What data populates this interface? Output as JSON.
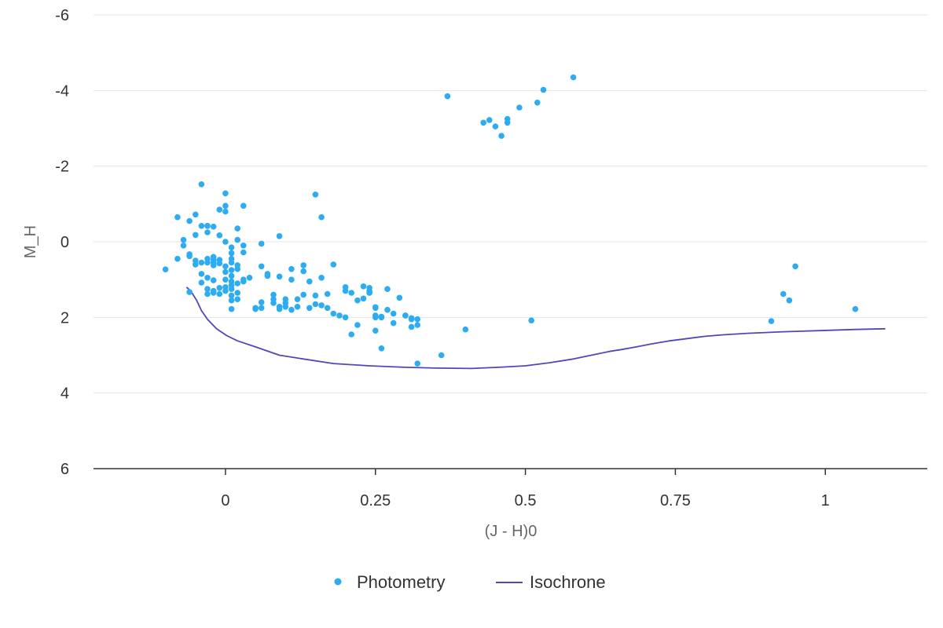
{
  "chart_data": {
    "type": "scatter",
    "title": "",
    "xlabel": "(J - H)0",
    "ylabel": "M_H",
    "xlim": [
      -0.22,
      1.17
    ],
    "ylim": [
      6,
      -6
    ],
    "y_reversed": true,
    "grid": "horizontal",
    "legend_position": "bottom-center",
    "x_ticks": [
      {
        "value": 0,
        "label": "0"
      },
      {
        "value": 0.25,
        "label": "0.25"
      },
      {
        "value": 0.5,
        "label": "0.5"
      },
      {
        "value": 0.75,
        "label": "0.75"
      },
      {
        "value": 1,
        "label": "1"
      }
    ],
    "y_ticks": [
      {
        "value": -6,
        "label": "-6"
      },
      {
        "value": -4,
        "label": "-4"
      },
      {
        "value": -2,
        "label": "-2"
      },
      {
        "value": 0,
        "label": "0"
      },
      {
        "value": 2,
        "label": "2"
      },
      {
        "value": 4,
        "label": "4"
      },
      {
        "value": 6,
        "label": "6"
      }
    ],
    "series": [
      {
        "name": "Photometry",
        "kind": "scatter",
        "color": "#2eacf2",
        "points": [
          [
            -0.1,
            0.73
          ],
          [
            -0.08,
            -0.65
          ],
          [
            -0.08,
            0.45
          ],
          [
            -0.07,
            -0.05
          ],
          [
            -0.07,
            0.1
          ],
          [
            -0.06,
            0.33
          ],
          [
            -0.06,
            0.38
          ],
          [
            -0.06,
            1.33
          ],
          [
            -0.06,
            -0.55
          ],
          [
            -0.05,
            -0.18
          ],
          [
            -0.05,
            0.5
          ],
          [
            -0.05,
            0.6
          ],
          [
            -0.05,
            -0.72
          ],
          [
            -0.04,
            -0.42
          ],
          [
            -0.04,
            0.55
          ],
          [
            -0.04,
            0.85
          ],
          [
            -0.04,
            1.08
          ],
          [
            -0.03,
            -0.42
          ],
          [
            -0.03,
            -0.25
          ],
          [
            -0.03,
            0.45
          ],
          [
            -0.03,
            0.55
          ],
          [
            -0.03,
            0.95
          ],
          [
            -0.03,
            1.25
          ],
          [
            -0.02,
            0.48
          ],
          [
            -0.02,
            0.62
          ],
          [
            -0.04,
            -1.52
          ],
          [
            -0.03,
            -0.42
          ],
          [
            -0.02,
            -0.4
          ],
          [
            -0.02,
            0.4
          ],
          [
            -0.02,
            0.55
          ],
          [
            -0.02,
            1.02
          ],
          [
            -0.02,
            1.3
          ],
          [
            -0.01,
            1.38
          ],
          [
            -0.01,
            1.22
          ],
          [
            -0.03,
            1.38
          ],
          [
            -0.02,
            1.35
          ],
          [
            -0.01,
            -0.17
          ],
          [
            -0.01,
            -0.85
          ],
          [
            -0.01,
            0.48
          ],
          [
            -0.01,
            0.57
          ],
          [
            0.0,
            -1.28
          ],
          [
            0.0,
            0.65
          ],
          [
            0.0,
            0.8
          ],
          [
            0.0,
            1.0
          ],
          [
            0.0,
            1.2
          ],
          [
            -0.0,
            1.3
          ],
          [
            0.0,
            -0.95
          ],
          [
            0.0,
            -0.8
          ],
          [
            0.0,
            0.0
          ],
          [
            0.01,
            0.15
          ],
          [
            0.01,
            0.3
          ],
          [
            0.01,
            0.45
          ],
          [
            0.01,
            0.55
          ],
          [
            0.01,
            0.75
          ],
          [
            0.01,
            0.9
          ],
          [
            0.01,
            1.05
          ],
          [
            0.01,
            1.15
          ],
          [
            0.01,
            1.25
          ],
          [
            0.01,
            1.42
          ],
          [
            0.01,
            1.55
          ],
          [
            0.01,
            1.78
          ],
          [
            0.02,
            -0.35
          ],
          [
            0.02,
            -0.05
          ],
          [
            0.02,
            0.62
          ],
          [
            0.02,
            0.72
          ],
          [
            0.02,
            1.1
          ],
          [
            0.02,
            1.35
          ],
          [
            0.02,
            1.52
          ],
          [
            0.03,
            1.05
          ],
          [
            0.03,
            0.1
          ],
          [
            0.03,
            -0.95
          ],
          [
            0.03,
            0.28
          ],
          [
            0.03,
            1.0
          ],
          [
            0.04,
            0.95
          ],
          [
            0.05,
            1.75
          ],
          [
            0.05,
            1.78
          ],
          [
            0.06,
            0.65
          ],
          [
            0.06,
            1.6
          ],
          [
            0.06,
            1.75
          ],
          [
            0.06,
            0.05
          ],
          [
            0.07,
            0.85
          ],
          [
            0.07,
            0.9
          ],
          [
            0.08,
            1.4
          ],
          [
            0.08,
            1.52
          ],
          [
            0.08,
            1.62
          ],
          [
            0.09,
            1.72
          ],
          [
            0.09,
            1.78
          ],
          [
            0.09,
            -0.15
          ],
          [
            0.09,
            0.92
          ],
          [
            0.1,
            1.52
          ],
          [
            0.1,
            1.62
          ],
          [
            0.1,
            1.72
          ],
          [
            0.11,
            0.72
          ],
          [
            0.11,
            1.0
          ],
          [
            0.11,
            1.8
          ],
          [
            0.12,
            1.52
          ],
          [
            0.12,
            1.72
          ],
          [
            0.13,
            0.62
          ],
          [
            0.13,
            0.78
          ],
          [
            0.13,
            1.4
          ],
          [
            0.14,
            1.05
          ],
          [
            0.14,
            1.75
          ],
          [
            0.15,
            1.42
          ],
          [
            0.15,
            -1.25
          ],
          [
            0.15,
            1.65
          ],
          [
            0.16,
            -0.65
          ],
          [
            0.16,
            1.68
          ],
          [
            0.16,
            0.95
          ],
          [
            0.17,
            1.38
          ],
          [
            0.17,
            1.75
          ],
          [
            0.18,
            1.9
          ],
          [
            0.18,
            0.6
          ],
          [
            0.19,
            1.95
          ],
          [
            0.2,
            1.3
          ],
          [
            0.2,
            1.2
          ],
          [
            0.2,
            2.0
          ],
          [
            0.21,
            1.35
          ],
          [
            0.21,
            2.45
          ],
          [
            0.22,
            2.2
          ],
          [
            0.22,
            1.55
          ],
          [
            0.23,
            1.18
          ],
          [
            0.23,
            1.5
          ],
          [
            0.24,
            1.22
          ],
          [
            0.24,
            1.3
          ],
          [
            0.24,
            1.35
          ],
          [
            0.25,
            1.95
          ],
          [
            0.25,
            2.0
          ],
          [
            0.25,
            2.35
          ],
          [
            0.26,
            1.98
          ],
          [
            0.26,
            2.0
          ],
          [
            0.27,
            1.8
          ],
          [
            0.27,
            1.25
          ],
          [
            0.28,
            1.9
          ],
          [
            0.28,
            2.15
          ],
          [
            0.29,
            1.48
          ],
          [
            0.3,
            1.95
          ],
          [
            0.31,
            2.02
          ],
          [
            0.31,
            2.25
          ],
          [
            0.32,
            2.2
          ],
          [
            0.32,
            2.05
          ],
          [
            0.24,
            1.35
          ],
          [
            0.25,
            1.75
          ],
          [
            0.25,
            1.73
          ],
          [
            0.26,
            2.82
          ],
          [
            0.3,
            1.95
          ],
          [
            0.31,
            2.05
          ],
          [
            0.32,
            3.22
          ],
          [
            0.36,
            3.0
          ],
          [
            0.4,
            2.32
          ],
          [
            0.51,
            2.08
          ],
          [
            0.37,
            -3.85
          ],
          [
            0.43,
            -3.15
          ],
          [
            0.44,
            -3.22
          ],
          [
            0.45,
            -3.05
          ],
          [
            0.46,
            -2.8
          ],
          [
            0.47,
            -3.25
          ],
          [
            0.47,
            -3.15
          ],
          [
            0.49,
            -3.55
          ],
          [
            0.52,
            -3.68
          ],
          [
            0.53,
            -4.02
          ],
          [
            0.58,
            -4.35
          ],
          [
            0.91,
            2.1
          ],
          [
            0.93,
            1.38
          ],
          [
            0.94,
            1.55
          ],
          [
            0.95,
            0.65
          ],
          [
            1.05,
            1.78
          ]
        ]
      },
      {
        "name": "Isochrone",
        "kind": "line",
        "color": "#5048b8",
        "segments": [
          [
            [
              -0.065,
              1.2
            ],
            [
              -0.058,
              1.3
            ],
            [
              -0.048,
              1.55
            ],
            [
              -0.04,
              1.82
            ],
            [
              -0.03,
              2.05
            ],
            [
              -0.015,
              2.3
            ],
            [
              0.002,
              2.48
            ],
            [
              0.02,
              2.62
            ],
            [
              0.05,
              2.78
            ],
            [
              0.09,
              3.0
            ],
            [
              0.13,
              3.1
            ],
            [
              0.18,
              3.22
            ],
            [
              0.24,
              3.28
            ],
            [
              0.3,
              3.32
            ],
            [
              0.35,
              3.34
            ],
            [
              0.41,
              3.35
            ],
            [
              0.455,
              3.32
            ],
            [
              0.5,
              3.28
            ],
            [
              0.54,
              3.2
            ],
            [
              0.58,
              3.1
            ],
            [
              0.61,
              3.0
            ],
            [
              0.64,
              2.9
            ],
            [
              0.66,
              2.85
            ],
            [
              0.685,
              2.78
            ],
            [
              0.71,
              2.7
            ],
            [
              0.74,
              2.62
            ],
            [
              0.76,
              2.58
            ],
            [
              0.78,
              2.54
            ],
            [
              0.8,
              2.5
            ],
            [
              0.83,
              2.46
            ],
            [
              0.87,
              2.42
            ],
            [
              0.93,
              2.38
            ],
            [
              0.99,
              2.35
            ],
            [
              1.05,
              2.32
            ],
            [
              1.1,
              2.3
            ]
          ]
        ]
      }
    ]
  },
  "legend": {
    "photometry_label": "Photometry",
    "isochrone_label": "Isochrone"
  }
}
